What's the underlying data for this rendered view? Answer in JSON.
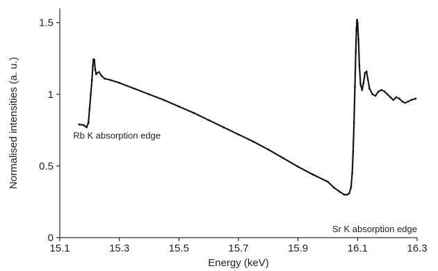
{
  "chart_data": {
    "type": "scatter",
    "title": "",
    "xlabel": "Energy (keV)",
    "ylabel": "Normalised intensities (a. u.)",
    "xlim": [
      15.1,
      16.3
    ],
    "ylim": [
      0,
      1.6
    ],
    "grid": false,
    "legend": "none",
    "xticks": [
      15.1,
      15.3,
      15.5,
      15.7,
      15.9,
      16.1,
      16.3
    ],
    "xtick_labels": [
      "15.1",
      "15.3",
      "15.5",
      "15.7",
      "15.9",
      "16.1",
      "16.3"
    ],
    "yticks": [
      0,
      0.5,
      1,
      1.5
    ],
    "ytick_labels": [
      "0",
      "0.5",
      "1",
      "1.5"
    ],
    "annotations": [
      {
        "text": "Rb K absorption edge",
        "x": 15.145,
        "y": 0.69,
        "anchor": "start"
      },
      {
        "text": "Sr K absorption edge",
        "x": 16.3,
        "y": 0.04,
        "anchor": "end"
      }
    ],
    "marker_color": "#111111",
    "series": [
      {
        "points": [
          [
            15.165,
            0.79
          ],
          [
            15.18,
            0.785
          ],
          [
            15.19,
            0.77
          ],
          [
            15.196,
            0.8
          ],
          [
            15.2,
            0.9
          ],
          [
            15.204,
            1.0
          ],
          [
            15.208,
            1.1
          ],
          [
            15.211,
            1.2
          ],
          [
            15.213,
            1.245
          ],
          [
            15.216,
            1.24
          ],
          [
            15.219,
            1.17
          ],
          [
            15.222,
            1.14
          ],
          [
            15.226,
            1.15
          ],
          [
            15.232,
            1.155
          ],
          [
            15.24,
            1.13
          ],
          [
            15.25,
            1.11
          ],
          [
            15.27,
            1.1
          ],
          [
            15.3,
            1.08
          ],
          [
            15.35,
            1.04
          ],
          [
            15.4,
            1.0
          ],
          [
            15.45,
            0.96
          ],
          [
            15.5,
            0.915
          ],
          [
            15.55,
            0.87
          ],
          [
            15.6,
            0.82
          ],
          [
            15.65,
            0.77
          ],
          [
            15.7,
            0.72
          ],
          [
            15.75,
            0.67
          ],
          [
            15.8,
            0.615
          ],
          [
            15.85,
            0.555
          ],
          [
            15.9,
            0.495
          ],
          [
            15.95,
            0.44
          ],
          [
            16.0,
            0.39
          ],
          [
            16.02,
            0.35
          ],
          [
            16.04,
            0.32
          ],
          [
            16.055,
            0.3
          ],
          [
            16.065,
            0.3
          ],
          [
            16.072,
            0.31
          ],
          [
            16.078,
            0.35
          ],
          [
            16.082,
            0.45
          ],
          [
            16.085,
            0.6
          ],
          [
            16.088,
            0.8
          ],
          [
            16.091,
            1.05
          ],
          [
            16.094,
            1.3
          ],
          [
            16.096,
            1.45
          ],
          [
            16.098,
            1.52
          ],
          [
            16.1,
            1.5
          ],
          [
            16.103,
            1.38
          ],
          [
            16.106,
            1.2
          ],
          [
            16.11,
            1.07
          ],
          [
            16.115,
            1.03
          ],
          [
            16.12,
            1.08
          ],
          [
            16.125,
            1.15
          ],
          [
            16.13,
            1.16
          ],
          [
            16.135,
            1.1
          ],
          [
            16.14,
            1.04
          ],
          [
            16.15,
            1.0
          ],
          [
            16.16,
            0.99
          ],
          [
            16.17,
            1.02
          ],
          [
            16.18,
            1.03
          ],
          [
            16.19,
            1.02
          ],
          [
            16.2,
            1.0
          ],
          [
            16.21,
            0.98
          ],
          [
            16.22,
            0.96
          ],
          [
            16.23,
            0.98
          ],
          [
            16.24,
            0.97
          ],
          [
            16.25,
            0.95
          ],
          [
            16.26,
            0.94
          ],
          [
            16.27,
            0.95
          ],
          [
            16.28,
            0.96
          ],
          [
            16.295,
            0.97
          ]
        ]
      }
    ]
  }
}
